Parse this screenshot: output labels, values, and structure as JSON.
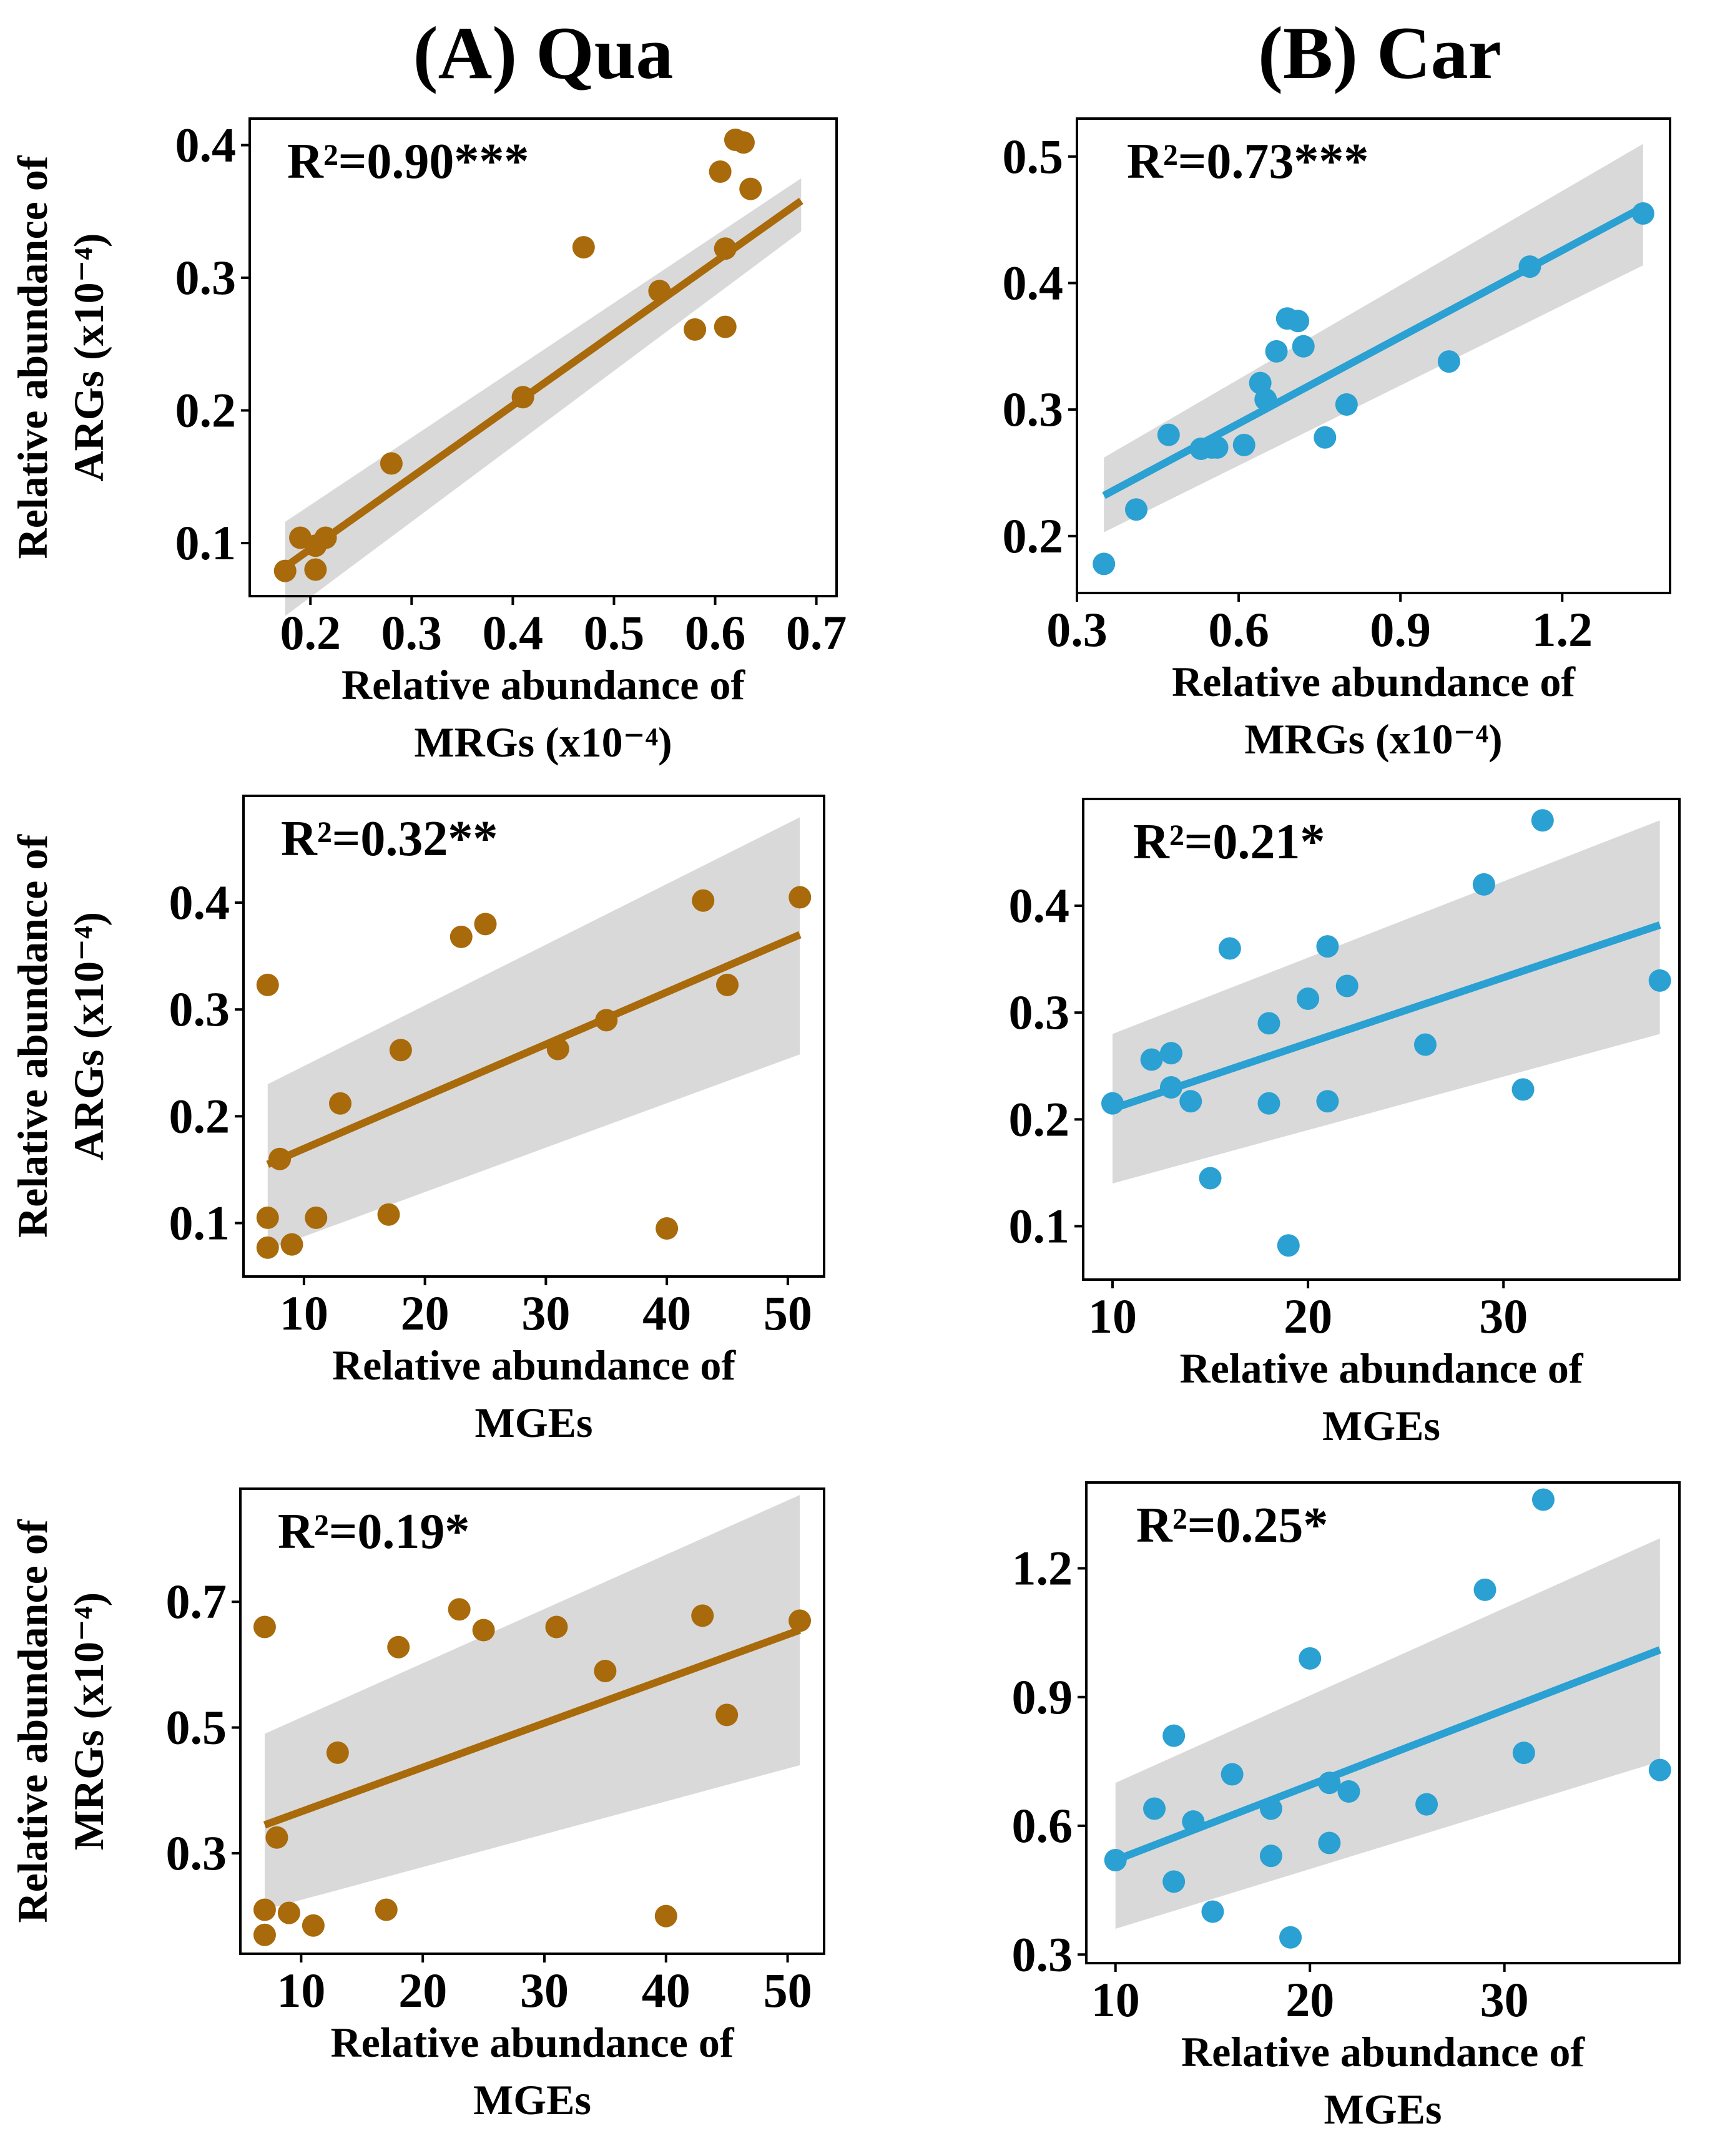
{
  "columns": [
    {
      "label": "(A) Qua",
      "color": "#A86A0B"
    },
    {
      "label": "(B) Car",
      "color": "#2BA0D2"
    }
  ],
  "band_color": "#D9D9D9",
  "chart_data": [
    {
      "type": "scatter",
      "group": "Qua",
      "title": "",
      "xlabel": [
        "Relative abundance of",
        "MRGs (x10⁻⁴)"
      ],
      "ylabel": [
        "Relative abundance of",
        "ARGs (x10⁻⁴)"
      ],
      "annotation": "R²=0.90***",
      "xlim": [
        0.14,
        0.72
      ],
      "ylim": [
        0.06,
        0.42
      ],
      "xticks": [
        0.2,
        0.3,
        0.4,
        0.5,
        0.6,
        0.7
      ],
      "xtick_labels": [
        "0.2",
        "0.3",
        "0.4",
        "0.5",
        "0.6",
        "0.7"
      ],
      "yticks": [
        0.1,
        0.2,
        0.3,
        0.4
      ],
      "ytick_labels": [
        "0.1",
        "0.2",
        "0.3",
        "0.4"
      ],
      "points": [
        [
          0.175,
          0.079
        ],
        [
          0.19,
          0.104
        ],
        [
          0.205,
          0.098
        ],
        [
          0.215,
          0.104
        ],
        [
          0.205,
          0.08
        ],
        [
          0.28,
          0.16
        ],
        [
          0.41,
          0.21
        ],
        [
          0.47,
          0.323
        ],
        [
          0.545,
          0.29
        ],
        [
          0.58,
          0.261
        ],
        [
          0.605,
          0.38
        ],
        [
          0.61,
          0.322
        ],
        [
          0.61,
          0.263
        ],
        [
          0.62,
          0.404
        ],
        [
          0.628,
          0.402
        ],
        [
          0.635,
          0.367
        ]
      ],
      "fit": {
        "x0": 0.175,
        "x1": 0.685,
        "y0": 0.082,
        "y1": 0.358
      },
      "ci": {
        "upper": [
          0.116,
          0.375
        ],
        "lower": [
          0.045,
          0.335
        ]
      }
    },
    {
      "type": "scatter",
      "group": "Car",
      "title": "",
      "xlabel": [
        "Relative abundance of",
        "MRGs (x10⁻⁴)"
      ],
      "ylabel": [],
      "annotation": "R²=0.73***",
      "xlim": [
        0.3,
        1.4
      ],
      "ylim": [
        0.155,
        0.53
      ],
      "xticks": [
        0.3,
        0.6,
        0.9,
        1.2
      ],
      "xtick_labels": [
        "0.3",
        "0.6",
        "0.9",
        "1.2"
      ],
      "yticks": [
        0.2,
        0.3,
        0.4,
        0.5
      ],
      "ytick_labels": [
        "0.2",
        "0.3",
        "0.4",
        "0.5"
      ],
      "points": [
        [
          0.35,
          0.178
        ],
        [
          0.41,
          0.221
        ],
        [
          0.47,
          0.28
        ],
        [
          0.53,
          0.269
        ],
        [
          0.55,
          0.27
        ],
        [
          0.56,
          0.27
        ],
        [
          0.61,
          0.272
        ],
        [
          0.64,
          0.321
        ],
        [
          0.65,
          0.308
        ],
        [
          0.67,
          0.346
        ],
        [
          0.69,
          0.372
        ],
        [
          0.71,
          0.37
        ],
        [
          0.72,
          0.35
        ],
        [
          0.76,
          0.278
        ],
        [
          0.8,
          0.304
        ],
        [
          0.99,
          0.338
        ],
        [
          1.14,
          0.413
        ],
        [
          1.35,
          0.455
        ]
      ],
      "fit": {
        "x0": 0.35,
        "x1": 1.35,
        "y0": 0.232,
        "y1": 0.46
      },
      "ci": {
        "upper": [
          0.262,
          0.51
        ],
        "lower": [
          0.203,
          0.414
        ]
      }
    },
    {
      "type": "scatter",
      "group": "Qua",
      "title": "",
      "xlabel": [
        "Relative abundance of",
        "MGEs"
      ],
      "ylabel": [
        "Relative abundance of",
        "ARGs (x10⁻⁴)"
      ],
      "annotation": "R²=0.32**",
      "xlim": [
        5,
        53
      ],
      "ylim": [
        0.05,
        0.5
      ],
      "xticks": [
        10,
        20,
        30,
        40,
        50
      ],
      "xtick_labels": [
        "10",
        "20",
        "30",
        "40",
        "50"
      ],
      "yticks": [
        0.1,
        0.2,
        0.3,
        0.4
      ],
      "ytick_labels": [
        "0.1",
        "0.2",
        "0.3",
        "0.4"
      ],
      "points": [
        [
          7,
          0.077
        ],
        [
          7,
          0.105
        ],
        [
          7,
          0.323
        ],
        [
          8,
          0.16
        ],
        [
          9,
          0.08
        ],
        [
          11,
          0.105
        ],
        [
          13,
          0.212
        ],
        [
          17,
          0.108
        ],
        [
          18,
          0.262
        ],
        [
          23,
          0.368
        ],
        [
          25,
          0.38
        ],
        [
          31,
          0.263
        ],
        [
          35,
          0.29
        ],
        [
          40,
          0.095
        ],
        [
          43,
          0.402
        ],
        [
          45,
          0.323
        ],
        [
          51,
          0.405
        ]
      ],
      "fit": {
        "x0": 7,
        "x1": 51,
        "y0": 0.155,
        "y1": 0.37
      },
      "ci": {
        "upper": [
          0.23,
          0.48
        ],
        "lower": [
          0.075,
          0.258
        ]
      }
    },
    {
      "type": "scatter",
      "group": "Car",
      "title": "",
      "xlabel": [
        "Relative abundance of",
        "MGEs"
      ],
      "ylabel": [],
      "annotation": "R²=0.21*",
      "xlim": [
        8.5,
        39
      ],
      "ylim": [
        0.05,
        0.5
      ],
      "xticks": [
        10,
        20,
        30
      ],
      "xtick_labels": [
        "10",
        "20",
        "30"
      ],
      "yticks": [
        0.1,
        0.2,
        0.3,
        0.4
      ],
      "ytick_labels": [
        "0.1",
        "0.2",
        "0.3",
        "0.4"
      ],
      "points": [
        [
          10,
          0.215
        ],
        [
          12,
          0.256
        ],
        [
          13,
          0.262
        ],
        [
          13,
          0.23
        ],
        [
          14,
          0.217
        ],
        [
          15,
          0.145
        ],
        [
          16,
          0.36
        ],
        [
          18,
          0.29
        ],
        [
          18,
          0.215
        ],
        [
          19,
          0.082
        ],
        [
          20,
          0.313
        ],
        [
          21,
          0.362
        ],
        [
          21,
          0.217
        ],
        [
          22,
          0.325
        ],
        [
          26,
          0.27
        ],
        [
          29,
          0.42
        ],
        [
          31,
          0.228
        ],
        [
          32,
          0.48
        ],
        [
          38,
          0.33
        ]
      ],
      "fit": {
        "x0": 10,
        "x1": 38,
        "y0": 0.21,
        "y1": 0.382
      },
      "ci": {
        "upper": [
          0.28,
          0.48
        ],
        "lower": [
          0.14,
          0.28
        ]
      }
    },
    {
      "type": "scatter",
      "group": "Qua",
      "title": "",
      "xlabel": [
        "Relative abundance of",
        "MGEs"
      ],
      "ylabel": [
        "Relative abundance of",
        "MRGs (x10⁻⁴)"
      ],
      "annotation": "R²=0.19*",
      "xlim": [
        5,
        53
      ],
      "ylim": [
        0.14,
        0.88
      ],
      "xticks": [
        10,
        20,
        30,
        40,
        50
      ],
      "xtick_labels": [
        "10",
        "20",
        "30",
        "40",
        "50"
      ],
      "yticks": [
        0.3,
        0.5,
        0.7
      ],
      "ytick_labels": [
        "0.3",
        "0.5",
        "0.7"
      ],
      "points": [
        [
          7,
          0.17
        ],
        [
          7,
          0.21
        ],
        [
          7,
          0.66
        ],
        [
          8,
          0.325
        ],
        [
          9,
          0.205
        ],
        [
          11,
          0.185
        ],
        [
          13,
          0.46
        ],
        [
          17,
          0.21
        ],
        [
          18,
          0.628
        ],
        [
          23,
          0.688
        ],
        [
          25,
          0.655
        ],
        [
          31,
          0.66
        ],
        [
          35,
          0.59
        ],
        [
          40,
          0.2
        ],
        [
          43,
          0.678
        ],
        [
          45,
          0.52
        ],
        [
          51,
          0.67
        ]
      ],
      "fit": {
        "x0": 7,
        "x1": 51,
        "y0": 0.345,
        "y1": 0.655
      },
      "ci": {
        "upper": [
          0.49,
          0.87
        ],
        "lower": [
          0.21,
          0.44
        ]
      }
    },
    {
      "type": "scatter",
      "group": "Car",
      "title": "",
      "xlabel": [
        "Relative abundance of",
        "MGEs"
      ],
      "ylabel": [],
      "annotation": "R²=0.25*",
      "xlim": [
        8.5,
        39
      ],
      "ylim": [
        0.28,
        1.4
      ],
      "xticks": [
        10,
        20,
        30
      ],
      "xtick_labels": [
        "10",
        "20",
        "30"
      ],
      "yticks": [
        0.3,
        0.6,
        0.9,
        1.2
      ],
      "ytick_labels": [
        "0.3",
        "0.6",
        "0.9",
        "1.2"
      ],
      "points": [
        [
          10,
          0.52
        ],
        [
          12,
          0.64
        ],
        [
          13,
          0.47
        ],
        [
          13,
          0.81
        ],
        [
          14,
          0.61
        ],
        [
          15,
          0.4
        ],
        [
          16,
          0.72
        ],
        [
          18,
          0.64
        ],
        [
          18,
          0.53
        ],
        [
          19,
          0.34
        ],
        [
          20,
          0.99
        ],
        [
          21,
          0.7
        ],
        [
          21,
          0.56
        ],
        [
          22,
          0.68
        ],
        [
          26,
          0.65
        ],
        [
          29,
          1.15
        ],
        [
          31,
          0.77
        ],
        [
          32,
          1.36
        ],
        [
          38,
          0.73
        ]
      ],
      "fit": {
        "x0": 10,
        "x1": 38,
        "y0": 0.52,
        "y1": 1.01
      },
      "ci": {
        "upper": [
          0.7,
          1.27
        ],
        "lower": [
          0.36,
          0.75
        ]
      }
    }
  ]
}
